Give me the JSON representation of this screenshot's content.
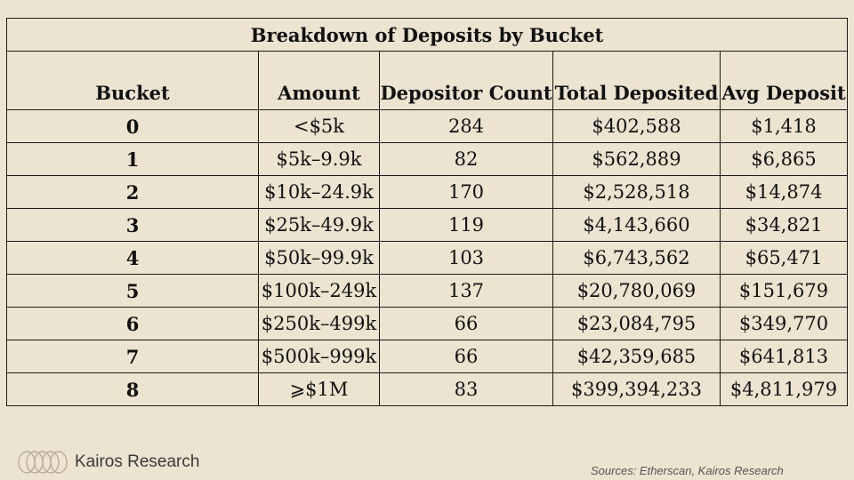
{
  "table": {
    "title": "Breakdown of Deposits by Bucket",
    "columns": [
      "Bucket",
      "Amount",
      "Depositor Count",
      "Total Deposited",
      "Avg Deposit"
    ],
    "rows": [
      {
        "bucket": "0",
        "amount": "<$5k",
        "count": "284",
        "total": "$402,588",
        "avg": "$1,418"
      },
      {
        "bucket": "1",
        "amount": "$5k–9.9k",
        "count": "82",
        "total": "$562,889",
        "avg": "$6,865"
      },
      {
        "bucket": "2",
        "amount": "$10k–24.9k",
        "count": "170",
        "total": "$2,528,518",
        "avg": "$14,874"
      },
      {
        "bucket": "3",
        "amount": "$25k–49.9k",
        "count": "119",
        "total": "$4,143,660",
        "avg": "$34,821"
      },
      {
        "bucket": "4",
        "amount": "$50k–99.9k",
        "count": "103",
        "total": "$6,743,562",
        "avg": "$65,471"
      },
      {
        "bucket": "5",
        "amount": "$100k–249k",
        "count": "137",
        "total": "$20,780,069",
        "avg": "$151,679"
      },
      {
        "bucket": "6",
        "amount": "$250k–499k",
        "count": "66",
        "total": "$23,084,795",
        "avg": "$349,770"
      },
      {
        "bucket": "7",
        "amount": "$500k–999k",
        "count": "66",
        "total": "$42,359,685",
        "avg": "$641,813"
      },
      {
        "bucket": "8",
        "amount": "⩾$1M",
        "count": "83",
        "total": "$399,394,233",
        "avg": "$4,811,979"
      }
    ]
  },
  "footer": {
    "brand": "Kairos Research",
    "logo_icon": "kairos-rings-icon",
    "sources": "Sources: Etherscan, Kairos Research"
  },
  "colors": {
    "background": "#ece3d0",
    "border": "#1a1a1a",
    "logo_ring": "#b8ad98"
  }
}
